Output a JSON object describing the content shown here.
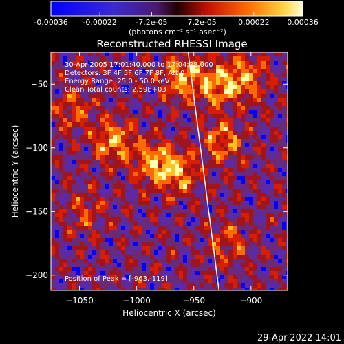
{
  "chart_data": {
    "type": "heatmap",
    "title": "Reconstructed RHESSI Image",
    "xlabel": "Heliocentric X (arcsec)",
    "ylabel": "Heliocentric Y (arcsec)",
    "xlim": [
      -1075,
      -868
    ],
    "ylim": [
      -212,
      -25
    ],
    "x_ticks": [
      -1050,
      -1000,
      -950,
      -900
    ],
    "y_ticks": [
      -200,
      -150,
      -100,
      -50
    ],
    "colorbar": {
      "ticks": [
        {
          "value": -0.00036,
          "label": "-0.00036"
        },
        {
          "value": -0.00022,
          "label": "-0.00022"
        },
        {
          "value": -7.2e-05,
          "label": "-7.2e-05"
        },
        {
          "value": 7.2e-05,
          "label": "7.2e-05"
        },
        {
          "value": 0.00022,
          "label": "0.00022"
        },
        {
          "value": 0.00036,
          "label": "0.00036"
        }
      ],
      "range": [
        -0.00036,
        0.00036
      ],
      "units_label": "(photons cm⁻² s⁻¹ asec⁻²)"
    },
    "annotations": [
      "30-Apr-2005 17:01:40.000 to 17:04:28.000",
      "Detectors: 3F 4F 5F 6F 7F 8F, Att 0",
      "Energy Range: 25.0 - 50.0 keV",
      "Clean     Total counts: 2.59E+03"
    ],
    "peak_label": "Position of Peak = [-963,-119]",
    "peak": {
      "x": -963,
      "y": -119
    },
    "limb_line": [
      {
        "x": -955,
        "y": -25
      },
      {
        "x": -928,
        "y": -212
      }
    ],
    "bright_sources": [
      {
        "x": -1020,
        "y": -95,
        "amp": 1.0
      },
      {
        "x": -985,
        "y": -112,
        "amp": 1.0
      },
      {
        "x": -963,
        "y": -119,
        "amp": 0.9
      },
      {
        "x": -960,
        "y": -45,
        "amp": 1.0
      },
      {
        "x": -930,
        "y": -50,
        "amp": 1.0
      },
      {
        "x": -905,
        "y": -45,
        "amp": 0.9
      },
      {
        "x": -925,
        "y": -95,
        "amp": 0.8
      },
      {
        "x": -1055,
        "y": -70,
        "amp": 0.6
      },
      {
        "x": -1045,
        "y": -150,
        "amp": 0.5
      },
      {
        "x": -920,
        "y": -175,
        "amp": 0.6
      }
    ],
    "colormap": [
      "#0000ff",
      "#5a2aa8",
      "#6a2a7a",
      "#a0141e",
      "#d81e00",
      "#ff6a00",
      "#ffc020",
      "#ffffb0"
    ]
  },
  "footer": {
    "timestamp": "29-Apr-2022 14:01"
  }
}
